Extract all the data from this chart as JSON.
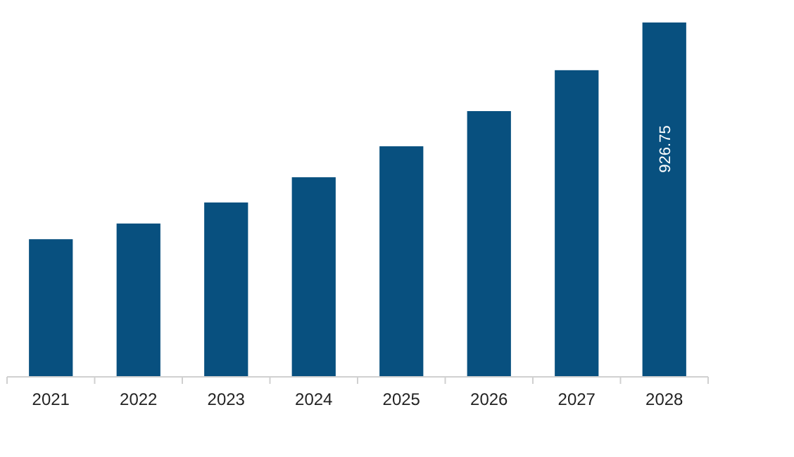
{
  "chart_data": {
    "type": "bar",
    "categories": [
      "2021",
      "2022",
      "2023",
      "2024",
      "2025",
      "2026",
      "2027",
      "2028"
    ],
    "values": [
      360,
      401,
      456,
      522,
      603,
      695,
      802,
      926.75
    ],
    "value_labels": [
      null,
      null,
      null,
      null,
      null,
      null,
      null,
      "926.75"
    ],
    "color": "#08507f"
  }
}
